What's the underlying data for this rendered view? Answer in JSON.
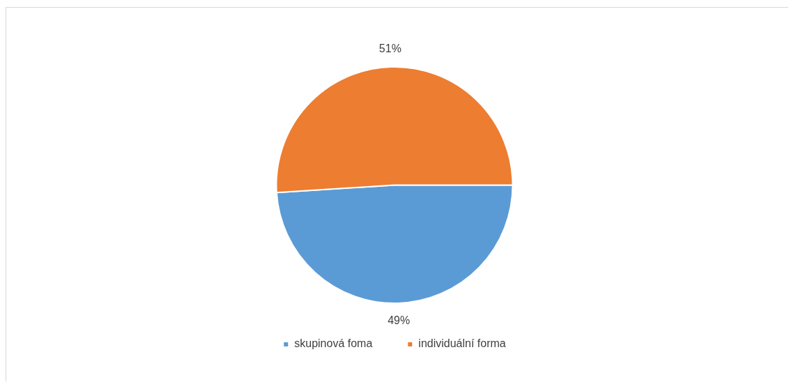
{
  "chart_data": {
    "type": "pie",
    "categories": [
      "skupinová foma",
      "individuální forma"
    ],
    "values": [
      49,
      51
    ],
    "colors": [
      "#5b9bd5",
      "#ed7d31"
    ],
    "value_labels": [
      "49%",
      "51%"
    ],
    "legend": "bottom"
  }
}
